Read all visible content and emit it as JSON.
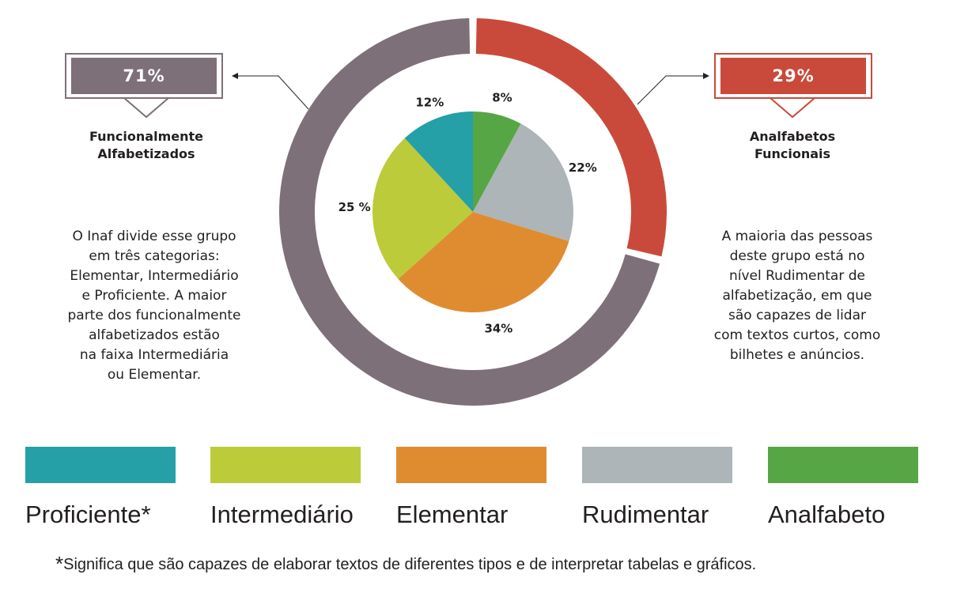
{
  "chart_data": {
    "type": "pie",
    "outer_ring": {
      "type": "donut",
      "slices": [
        {
          "name": "Analfabetos Funcionais",
          "value": 29,
          "label": "29%",
          "color": "#c94a3b"
        },
        {
          "name": "Funcionalmente Alfabetizados",
          "value": 71,
          "label": "71%",
          "color": "#7e7078"
        }
      ]
    },
    "inner_pie": {
      "type": "pie",
      "slices": [
        {
          "name": "Analfabeto",
          "value": 8,
          "label": "8%",
          "color": "#57a646"
        },
        {
          "name": "Rudimentar",
          "value": 22,
          "label": "22%",
          "color": "#adb5b8"
        },
        {
          "name": "Elementar",
          "value": 34,
          "label": "34%",
          "color": "#df8c31"
        },
        {
          "name": "Intermediário",
          "value": 25,
          "label": "25 %",
          "color": "#bccb39"
        },
        {
          "name": "Proficiente*",
          "value": 12,
          "label": "12%",
          "color": "#24a0a6"
        }
      ]
    }
  },
  "left_callout": {
    "value": "71%",
    "label_line1": "Funcionalmente",
    "label_line2": "Alfabetizados",
    "description": [
      "O Inaf divide esse grupo",
      "em três categorias:",
      "Elementar, Intermediário",
      "e Proficiente. A maior",
      "parte dos funcionalmente",
      "alfabetizados estão",
      "na faixa Intermediária",
      "ou Elementar."
    ],
    "color": "#7e7078"
  },
  "right_callout": {
    "value": "29%",
    "label_line1": "Analfabetos",
    "label_line2": "Funcionais",
    "description": [
      "A maioria das pessoas",
      "deste grupo está no",
      "nível Rudimentar de",
      "alfabetização, em que",
      "são capazes de lidar",
      "com textos curtos, como",
      "bilhetes e anúncios."
    ],
    "color": "#c94a3b"
  },
  "legend": [
    {
      "label": "Proficiente*",
      "color": "#24a0a6"
    },
    {
      "label": "Intermediário",
      "color": "#bccb39"
    },
    {
      "label": "Elementar",
      "color": "#df8c31"
    },
    {
      "label": "Rudimentar",
      "color": "#adb5b8"
    },
    {
      "label": "Analfabeto",
      "color": "#57a646"
    }
  ],
  "footnote": {
    "star": "*",
    "text": "Significa que são capazes de elaborar textos de diferentes tipos e de interpretar tabelas e gráficos."
  }
}
